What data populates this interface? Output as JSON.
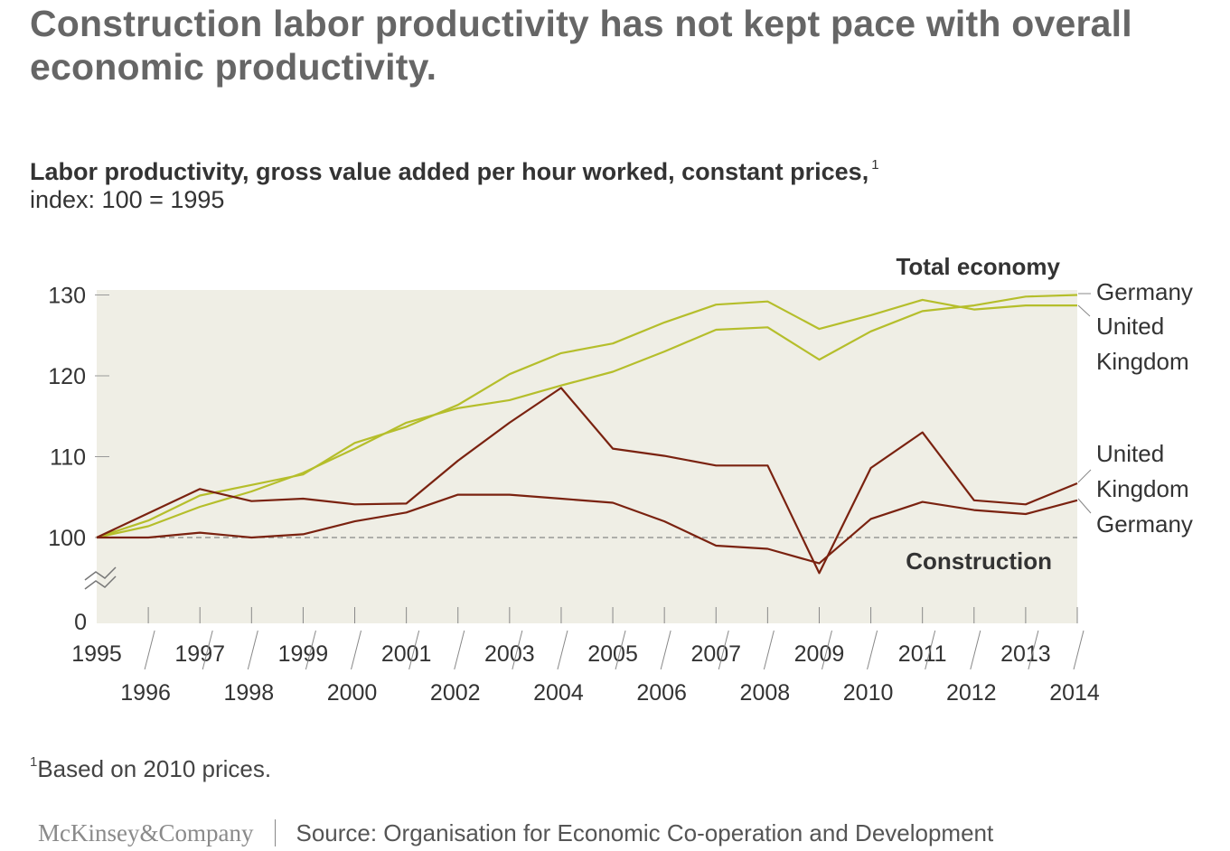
{
  "title": "Construction labor productivity has not kept pace with overall economic productivity.",
  "subtitle": "Labor productivity, gross value added per hour worked, constant prices,",
  "subtitle_note": "1",
  "unit_label": "index: 100 = 1995",
  "footnote_marker": "1",
  "footnote_text": "Based on 2010 prices.",
  "logo": "McKinsey&Company",
  "source": "Source: Organisation for Economic Co-operation and Development",
  "colors": {
    "total_economy": "#b5be2b",
    "construction": "#7a2210",
    "plot_bg": "#efeee5",
    "baseline": "#888888"
  },
  "chart_data": {
    "type": "line",
    "x": [
      1995,
      1996,
      1997,
      1998,
      1999,
      2000,
      2001,
      2002,
      2003,
      2004,
      2005,
      2006,
      2007,
      2008,
      2009,
      2010,
      2011,
      2012,
      2013,
      2014
    ],
    "x_tick_labels": [
      "1995",
      "1996",
      "1997",
      "1998",
      "1999",
      "2000",
      "2001",
      "2002",
      "2003",
      "2004",
      "2005",
      "2006",
      "2007",
      "2008",
      "2009",
      "2010",
      "2011",
      "2012",
      "2013",
      "2014"
    ],
    "y_ticks": [
      130,
      120,
      110,
      100,
      0
    ],
    "y_axis_break": true,
    "ylim": [
      0,
      130
    ],
    "baseline": 100,
    "group_labels": {
      "total": "Total economy",
      "construction": "Construction"
    },
    "series": [
      {
        "name": "Germany",
        "group": "total",
        "values": [
          100,
          101.4,
          103.8,
          105.7,
          108.0,
          111.0,
          114.2,
          116.0,
          117.0,
          118.8,
          120.5,
          123.0,
          125.7,
          126.0,
          122.0,
          125.5,
          128.0,
          128.7,
          129.8,
          130.0
        ]
      },
      {
        "name": "United Kingdom",
        "group": "total",
        "values": [
          100,
          102.1,
          105.2,
          106.5,
          107.8,
          111.7,
          113.7,
          116.4,
          120.2,
          122.8,
          124.0,
          126.6,
          128.8,
          129.2,
          125.8,
          127.5,
          129.4,
          128.2,
          128.7,
          128.7
        ]
      },
      {
        "name": "United Kingdom",
        "group": "construction",
        "values": [
          100,
          103.0,
          106.0,
          104.5,
          104.8,
          104.1,
          104.2,
          109.5,
          114.2,
          118.5,
          111.0,
          110.1,
          108.9,
          108.9,
          95.6,
          108.6,
          113.0,
          104.6,
          104.1,
          106.7
        ]
      },
      {
        "name": "Germany",
        "group": "construction",
        "values": [
          100,
          100.0,
          100.6,
          100.0,
          100.4,
          102.0,
          103.1,
          105.3,
          105.3,
          104.8,
          104.3,
          102.0,
          99.0,
          98.6,
          96.8,
          102.3,
          104.4,
          103.4,
          102.9,
          104.6
        ]
      }
    ],
    "line_labels": {
      "total": [
        "Germany",
        "United",
        "Kingdom"
      ],
      "construction": [
        "United",
        "Kingdom",
        "Germany"
      ]
    }
  }
}
